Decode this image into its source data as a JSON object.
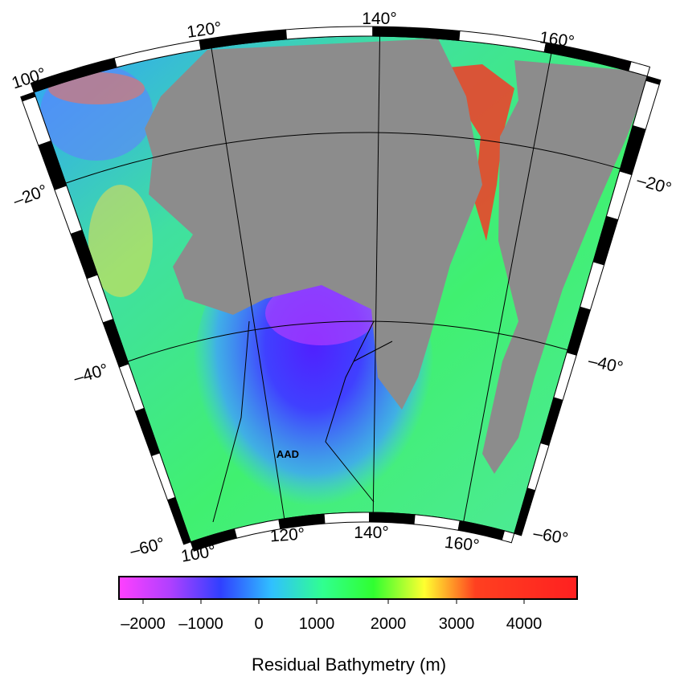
{
  "map": {
    "top_lon_labels": [
      "100°",
      "120°",
      "140°",
      "160°"
    ],
    "bottom_lon_labels": [
      "100°",
      "120°",
      "140°",
      "160°"
    ],
    "left_lat_labels": [
      "–20°",
      "–40°",
      "–60°"
    ],
    "right_lat_labels": [
      "–20°",
      "–40°",
      "–60°"
    ],
    "annotation": "AAD",
    "land_color": "#8c8c8c"
  },
  "colorbar": {
    "label": "Residual Bathymetry (m)",
    "ticks": [
      {
        "value": -2000,
        "label": "–2000"
      },
      {
        "value": -1000,
        "label": "–1000"
      },
      0,
      1000,
      2000,
      3000,
      4000
    ],
    "colors": [
      "#ff40ff",
      "#b040ff",
      "#3040ff",
      "#30c0ff",
      "#30ff90",
      "#30ff30",
      "#ffff30",
      "#ff4020",
      "#ff3020",
      "#ff2020"
    ]
  }
}
